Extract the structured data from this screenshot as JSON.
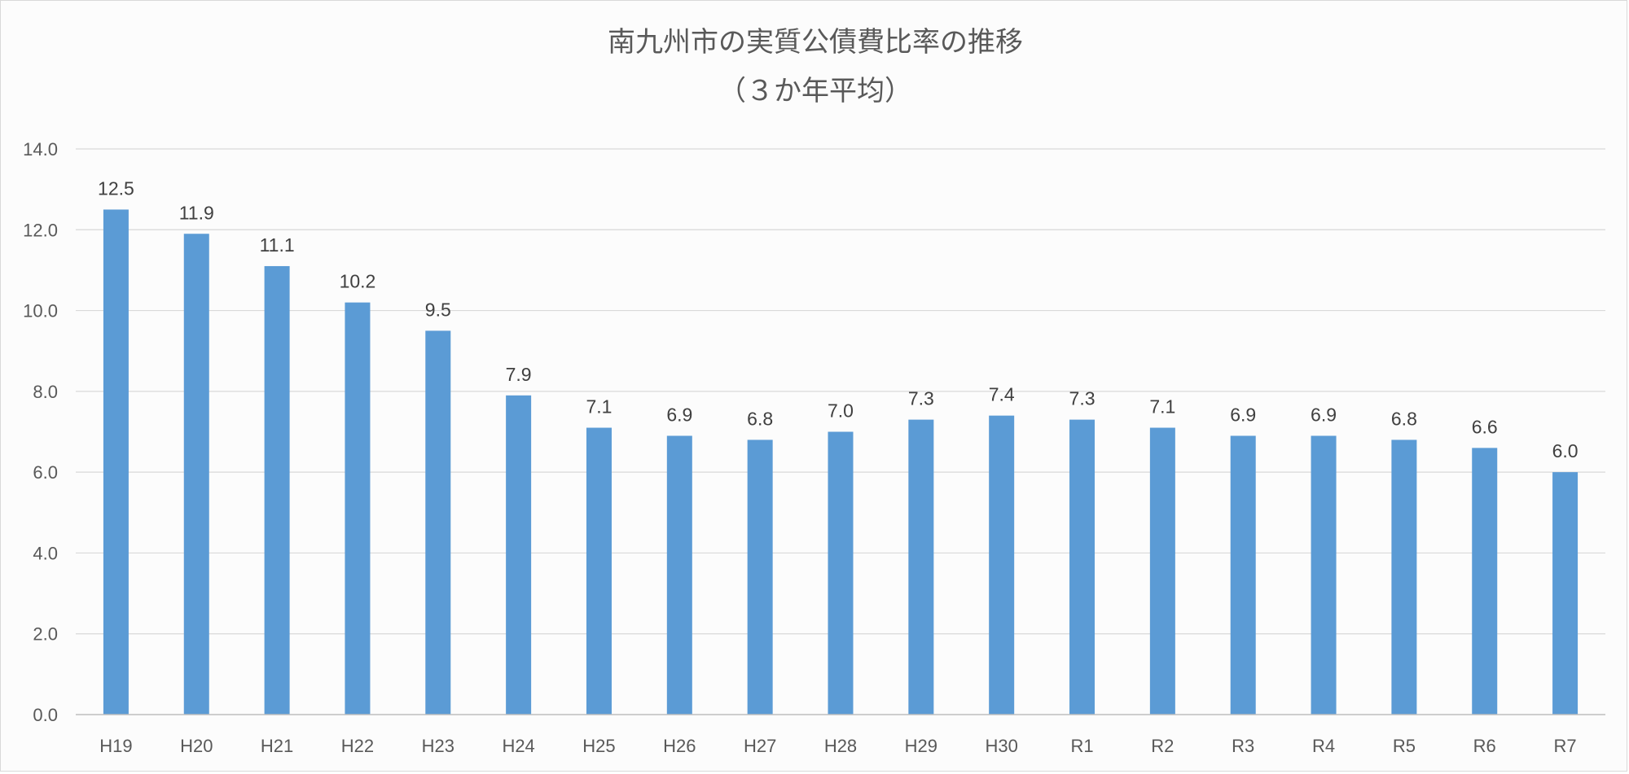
{
  "chart_data": {
    "type": "bar",
    "title": "南九州市の実質公債費比率の推移",
    "subtitle": "（３か年平均）",
    "categories": [
      "H19",
      "H20",
      "H21",
      "H22",
      "H23",
      "H24",
      "H25",
      "H26",
      "H27",
      "H28",
      "H29",
      "H30",
      "R1",
      "R2",
      "R3",
      "R4",
      "R5",
      "R6",
      "R7"
    ],
    "values": [
      12.5,
      11.9,
      11.1,
      10.2,
      9.5,
      7.9,
      7.1,
      6.9,
      6.8,
      7.0,
      7.3,
      7.4,
      7.3,
      7.1,
      6.9,
      6.9,
      6.8,
      6.6,
      6.0
    ],
    "data_labels": [
      "12.5",
      "11.9",
      "11.1",
      "10.2",
      "9.5",
      "7.9",
      "7.1",
      "6.9",
      "6.8",
      "7.0",
      "7.3",
      "7.4",
      "7.3",
      "7.1",
      "6.9",
      "6.9",
      "6.8",
      "6.6",
      "6.0"
    ],
    "ylim": [
      0,
      14
    ],
    "yticks": [
      "0.0",
      "2.0",
      "4.0",
      "6.0",
      "8.0",
      "10.0",
      "12.0",
      "14.0"
    ],
    "xlabel": "",
    "ylabel": "",
    "grid": true,
    "legend": "none",
    "bar_color": "#5b9bd5"
  }
}
